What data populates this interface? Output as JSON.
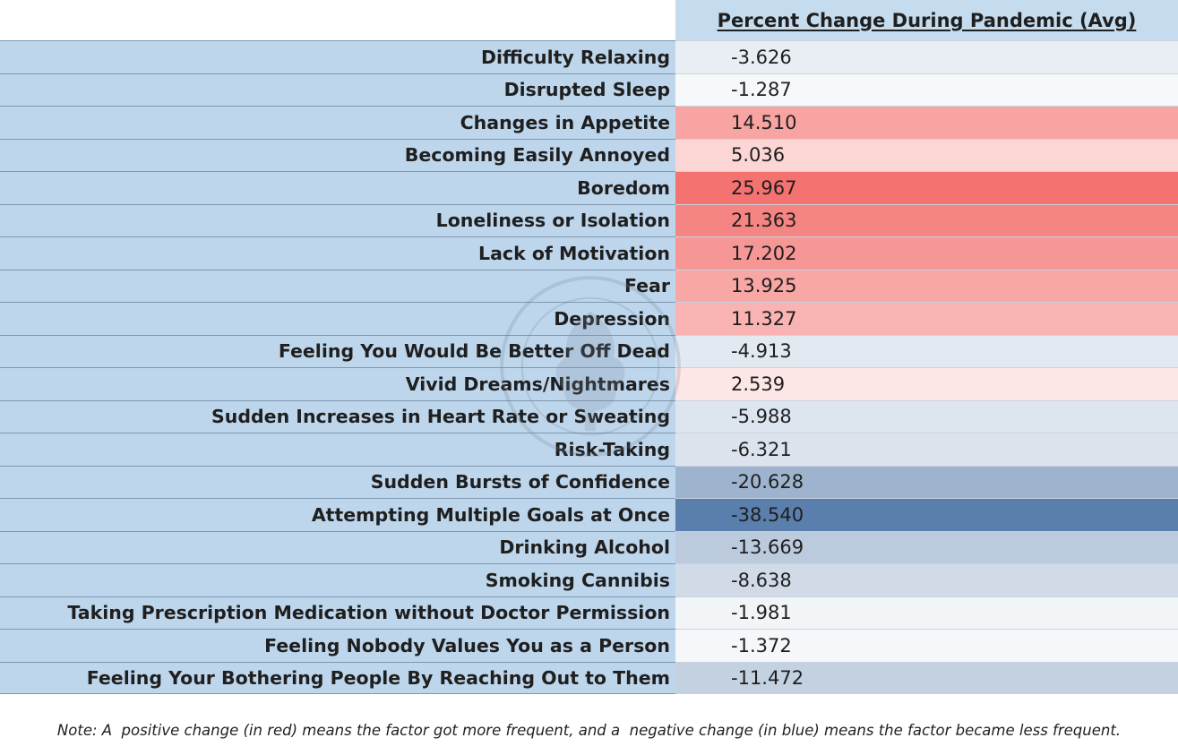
{
  "chart_data": {
    "type": "table",
    "column_header": "Percent Change During Pandemic (Avg)",
    "rows": [
      {
        "label": "Difficulty Relaxing",
        "value": "-3.626"
      },
      {
        "label": "Disrupted Sleep",
        "value": "-1.287"
      },
      {
        "label": "Changes in Appetite",
        "value": "14.510"
      },
      {
        "label": "Becoming Easily Annoyed",
        "value": "5.036"
      },
      {
        "label": "Boredom",
        "value": "25.967"
      },
      {
        "label": "Loneliness or Isolation",
        "value": "21.363"
      },
      {
        "label": "Lack of Motivation",
        "value": "17.202"
      },
      {
        "label": "Fear",
        "value": "13.925"
      },
      {
        "label": "Depression",
        "value": "11.327"
      },
      {
        "label": "Feeling You Would Be Better Off Dead",
        "value": "-4.913"
      },
      {
        "label": "Vivid Dreams/Nightmares",
        "value": "2.539"
      },
      {
        "label": "Sudden Increases in Heart Rate or Sweating",
        "value": "-5.988"
      },
      {
        "label": "Risk-Taking",
        "value": "-6.321"
      },
      {
        "label": "Sudden Bursts of Confidence",
        "value": "-20.628"
      },
      {
        "label": "Attempting Multiple Goals at Once",
        "value": "-38.540"
      },
      {
        "label": "Drinking Alcohol",
        "value": "-13.669"
      },
      {
        "label": "Smoking Cannibis",
        "value": "-8.638"
      },
      {
        "label": "Taking Prescription Medication without Doctor Permission",
        "value": "-1.981"
      },
      {
        "label": "Feeling Nobody Values You as a Person",
        "value": "-1.372"
      },
      {
        "label": "Feeling Your Bothering People By Reaching Out to Them",
        "value": "-11.472"
      }
    ],
    "positive_color": "#f4726f",
    "negative_color": "#5a7fac",
    "neutral_color": "#ffffff"
  },
  "note": "Note: A  positive change (in red) means the factor got more frequent, and a  negative change (in blue) means the factor became less frequent.",
  "colors": {
    "label_bg": "#bed6ec",
    "header_bg": "#c5dbee"
  }
}
